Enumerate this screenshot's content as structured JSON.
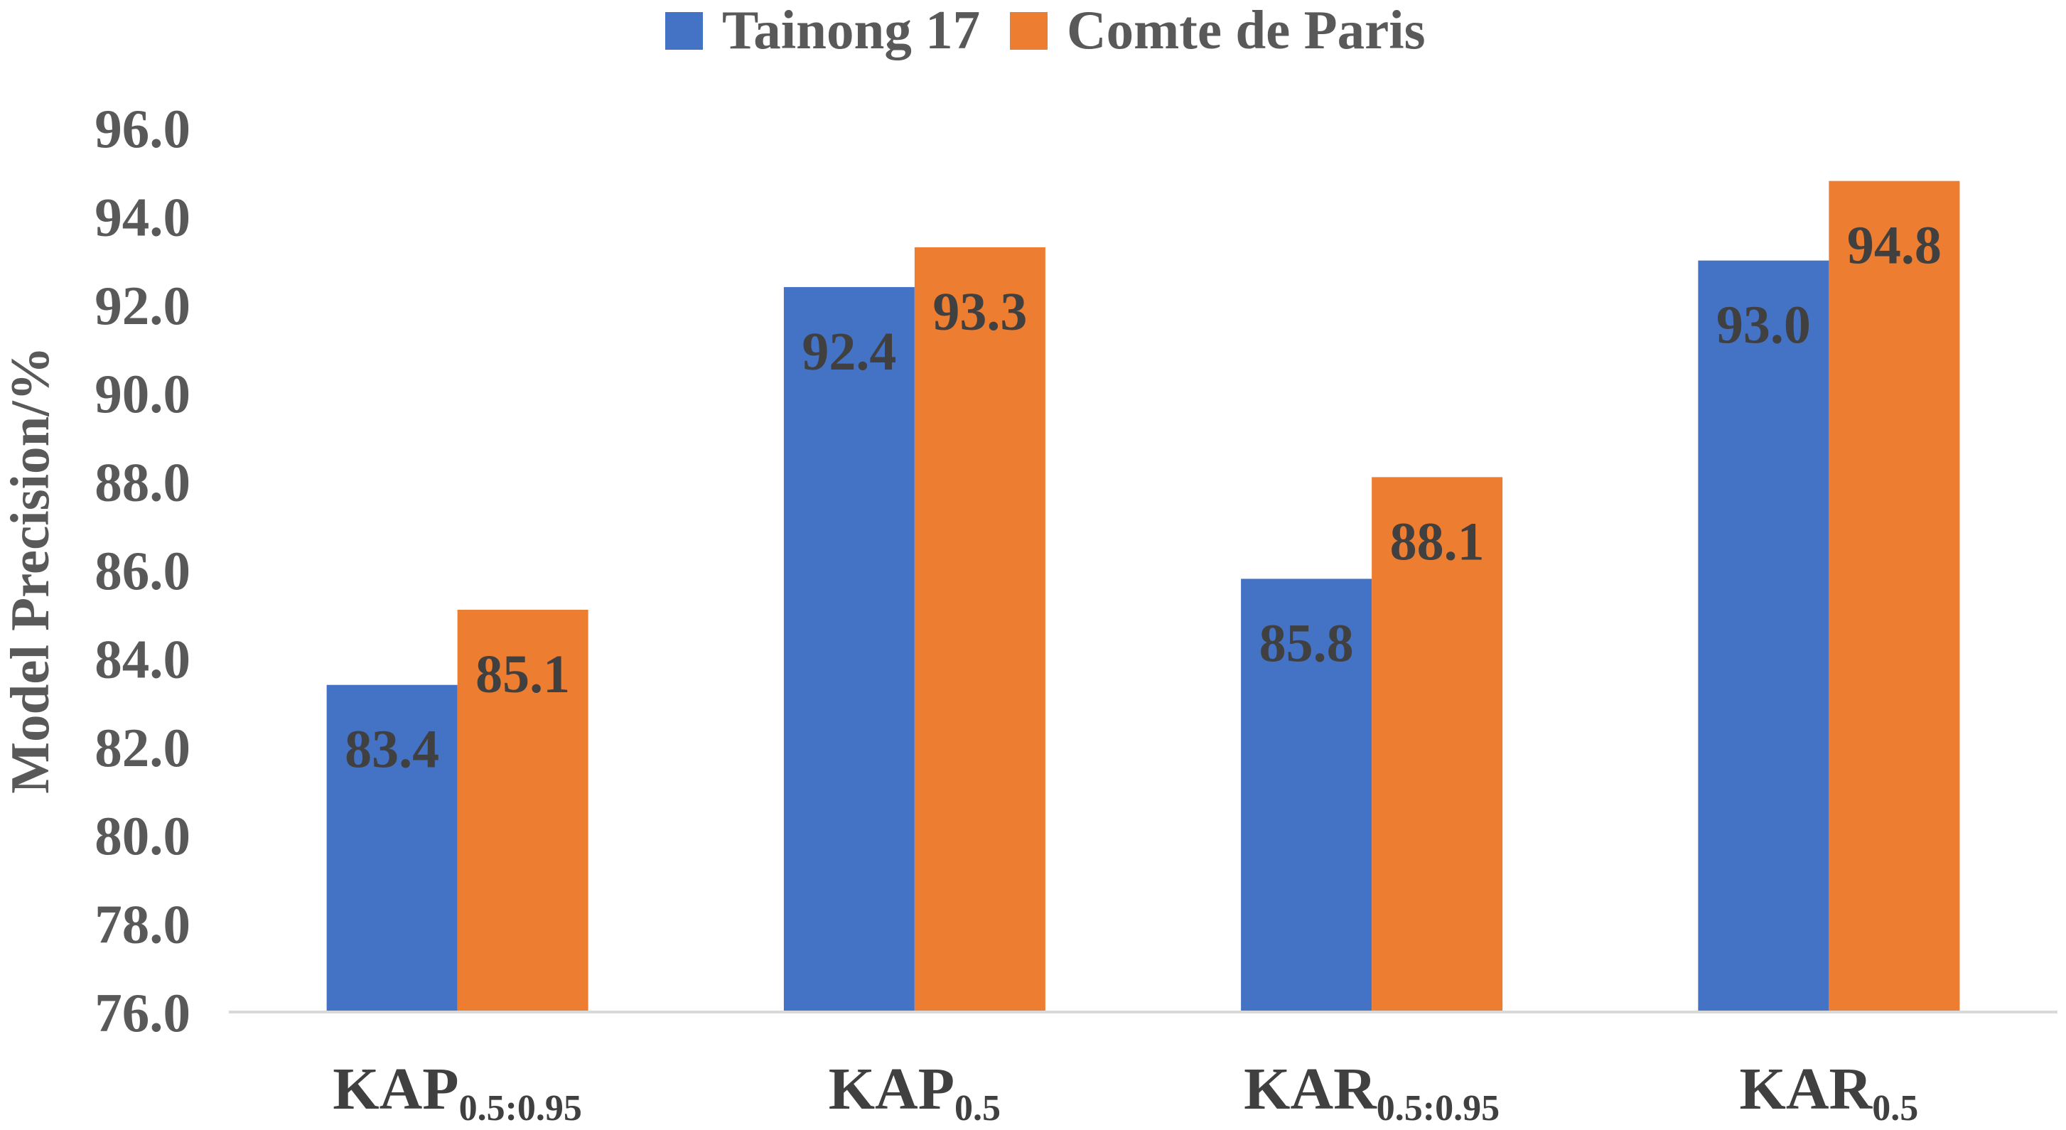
{
  "chart_data": {
    "type": "bar",
    "title": "",
    "xlabel": "",
    "ylabel": "Model Precision/%",
    "ylim": [
      76.0,
      96.0
    ],
    "yticks": [
      "76.0",
      "78.0",
      "80.0",
      "82.0",
      "84.0",
      "86.0",
      "88.0",
      "90.0",
      "92.0",
      "94.0",
      "96.0"
    ],
    "grid": false,
    "legend_position": "top",
    "categories": [
      {
        "base": "KAP",
        "sub": "0.5:0.95"
      },
      {
        "base": "KAP",
        "sub": "0.5"
      },
      {
        "base": "KAR",
        "sub": "0.5:0.95"
      },
      {
        "base": "KAR",
        "sub": "0.5"
      }
    ],
    "series": [
      {
        "name": "Tainong 17",
        "color": "#4472C4",
        "values": [
          83.4,
          92.4,
          85.8,
          93.0
        ],
        "labels": [
          "83.4",
          "92.4",
          "85.8",
          "93.0"
        ]
      },
      {
        "name": "Comte de Paris",
        "color": "#ED7D31",
        "values": [
          85.1,
          93.3,
          88.1,
          94.8
        ],
        "labels": [
          "85.1",
          "93.3",
          "88.1",
          "94.8"
        ]
      }
    ]
  }
}
